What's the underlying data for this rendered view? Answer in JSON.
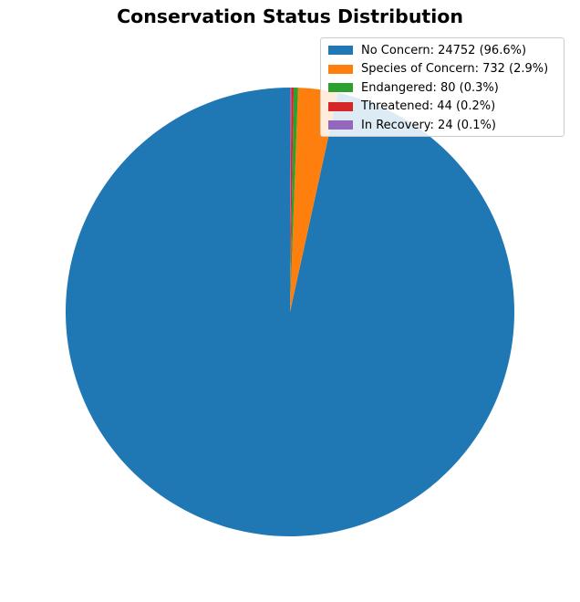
{
  "chart_data": {
    "type": "pie",
    "title": "Conservation Status Distribution",
    "legend_position": "top-right",
    "counterclock": true,
    "start_angle_deg": 90,
    "slices": [
      {
        "name": "No Concern",
        "value": 24752,
        "percent": "96.6%",
        "color": "#1f77b4",
        "legend_label": "No Concern: 24752 (96.6%)"
      },
      {
        "name": "Species of Concern",
        "value": 732,
        "percent": "2.9%",
        "color": "#ff7f0e",
        "legend_label": "Species of Concern: 732 (2.9%)"
      },
      {
        "name": "Endangered",
        "value": 80,
        "percent": "0.3%",
        "color": "#2ca02c",
        "legend_label": "Endangered: 80 (0.3%)"
      },
      {
        "name": "Threatened",
        "value": 44,
        "percent": "0.2%",
        "color": "#d62728",
        "legend_label": "Threatened: 44 (0.2%)"
      },
      {
        "name": "In Recovery",
        "value": 24,
        "percent": "0.1%",
        "color": "#9467bd",
        "legend_label": "In Recovery: 24 (0.1%)"
      }
    ]
  }
}
